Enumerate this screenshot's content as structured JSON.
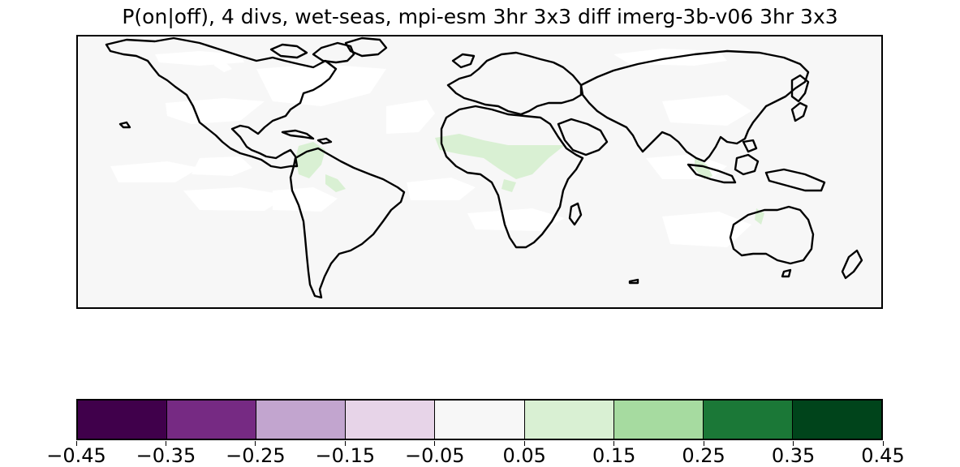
{
  "title": "P(on|off), 4 divs, wet-seas,  mpi-esm 3hr 3x3 diff imerg-3b-v06 3hr 3x3",
  "colorbar": {
    "colors": [
      "#40004b",
      "#762a83",
      "#c2a5cf",
      "#e7d4e8",
      "#f7f7f7",
      "#d9f0d3",
      "#a6dba0",
      "#1b7837",
      "#00441b"
    ],
    "ticks": [
      "−0.45",
      "−0.35",
      "−0.25",
      "−0.15",
      "−0.05",
      "0.05",
      "0.15",
      "0.25",
      "0.35",
      "0.45"
    ],
    "range": [
      -0.45,
      0.45
    ]
  },
  "map": {
    "background_color": "#f7f7f7",
    "missing_color": "#ffffff",
    "positive_color": "#d9f0d3",
    "projection": "equirectangular"
  }
}
